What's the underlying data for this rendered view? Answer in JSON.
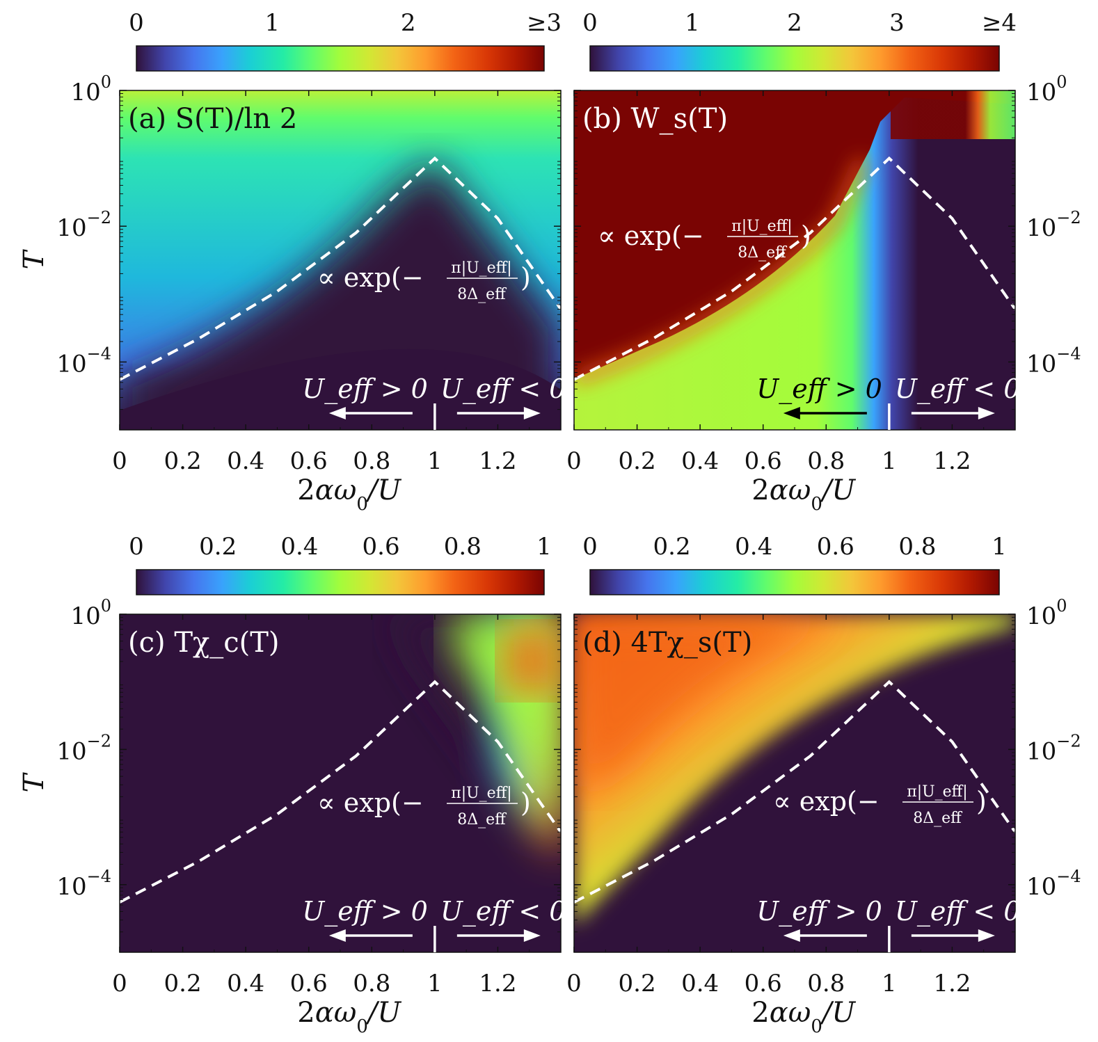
{
  "x_axis_label": "2αω₀/U",
  "y_axis_label": "T",
  "region_labels": {
    "positive": "U_eff > 0",
    "negative": "U_eff < 0"
  },
  "annotation": {
    "prefix": "∝ exp(−",
    "numerator": "π|U_eff|",
    "denominator": "8Δ_eff",
    "suffix": ")"
  },
  "chart_data": [
    {
      "type": "heatmap",
      "panel": "(a)",
      "title": "S(T)/ln 2",
      "colormap": "turbo",
      "colorbar_ticks": [
        "0",
        "1",
        "2",
        "≥3"
      ],
      "colorbar_range": [
        0,
        3
      ],
      "xlim": [
        0,
        1.4
      ],
      "x_ticks": [
        "0",
        "0.2",
        "0.4",
        "0.6",
        "0.8",
        "1",
        "1.2"
      ],
      "ylim": [
        1e-05,
        1
      ],
      "yscale": "log",
      "y_ticks": [
        "10^0",
        "10^-2",
        "10^-4"
      ],
      "y_axis_side": "left",
      "boundary_curve": {
        "x": [
          0,
          0.25,
          0.5,
          0.75,
          1.0,
          1.2,
          1.4
        ],
        "T": [
          5.5e-05,
          0.00022,
          0.0011,
          0.008,
          0.1,
          0.013,
          0.0006
        ]
      },
      "crossover_x": 1.0,
      "annotation_color": "white",
      "arrow_left_color": "white"
    },
    {
      "type": "heatmap",
      "panel": "(b)",
      "title": "W_s(T)",
      "colormap": "turbo",
      "colorbar_ticks": [
        "0",
        "1",
        "2",
        "3",
        "≥4"
      ],
      "colorbar_range": [
        0,
        4
      ],
      "xlim": [
        0,
        1.4
      ],
      "x_ticks": [
        "0",
        "0.2",
        "0.4",
        "0.6",
        "0.8",
        "1",
        "1.2"
      ],
      "ylim": [
        1e-05,
        1
      ],
      "yscale": "log",
      "y_ticks": [
        "10^0",
        "10^-2",
        "10^-4"
      ],
      "y_axis_side": "right",
      "boundary_curve": {
        "x": [
          0,
          0.25,
          0.5,
          0.75,
          1.0,
          1.2,
          1.4
        ],
        "T": [
          5.5e-05,
          0.00022,
          0.0011,
          0.008,
          0.1,
          0.013,
          0.0006
        ]
      },
      "crossover_x": 1.0,
      "annotation_color": "white",
      "arrow_left_color": "black"
    },
    {
      "type": "heatmap",
      "panel": "(c)",
      "title": "Tχ_c(T)",
      "colormap": "turbo",
      "colorbar_ticks": [
        "0",
        "0.2",
        "0.4",
        "0.6",
        "0.8",
        "1"
      ],
      "colorbar_range": [
        0,
        1
      ],
      "xlim": [
        0,
        1.4
      ],
      "x_ticks": [
        "0",
        "0.2",
        "0.4",
        "0.6",
        "0.8",
        "1",
        "1.2"
      ],
      "ylim": [
        1e-05,
        1
      ],
      "yscale": "log",
      "y_ticks": [
        "10^0",
        "10^-2",
        "10^-4"
      ],
      "y_axis_side": "left",
      "boundary_curve": {
        "x": [
          0,
          0.25,
          0.5,
          0.75,
          1.0,
          1.2,
          1.4
        ],
        "T": [
          5.5e-05,
          0.00022,
          0.0011,
          0.008,
          0.1,
          0.013,
          0.0006
        ]
      },
      "crossover_x": 1.0,
      "annotation_color": "white",
      "arrow_left_color": "white"
    },
    {
      "type": "heatmap",
      "panel": "(d)",
      "title": "4Tχ_s(T)",
      "colormap": "turbo",
      "colorbar_ticks": [
        "0",
        "0.2",
        "0.4",
        "0.6",
        "0.8",
        "1"
      ],
      "colorbar_range": [
        0,
        1
      ],
      "xlim": [
        0,
        1.4
      ],
      "x_ticks": [
        "0",
        "0.2",
        "0.4",
        "0.6",
        "0.8",
        "1",
        "1.2"
      ],
      "ylim": [
        1e-05,
        1
      ],
      "yscale": "log",
      "y_ticks": [
        "10^0",
        "10^-2",
        "10^-4"
      ],
      "y_axis_side": "right",
      "boundary_curve": {
        "x": [
          0,
          0.25,
          0.5,
          0.75,
          1.0,
          1.2,
          1.4
        ],
        "T": [
          5.5e-05,
          0.00022,
          0.0011,
          0.008,
          0.1,
          0.013,
          0.0006
        ]
      },
      "crossover_x": 1.0,
      "annotation_color": "white",
      "arrow_left_color": "white"
    }
  ]
}
